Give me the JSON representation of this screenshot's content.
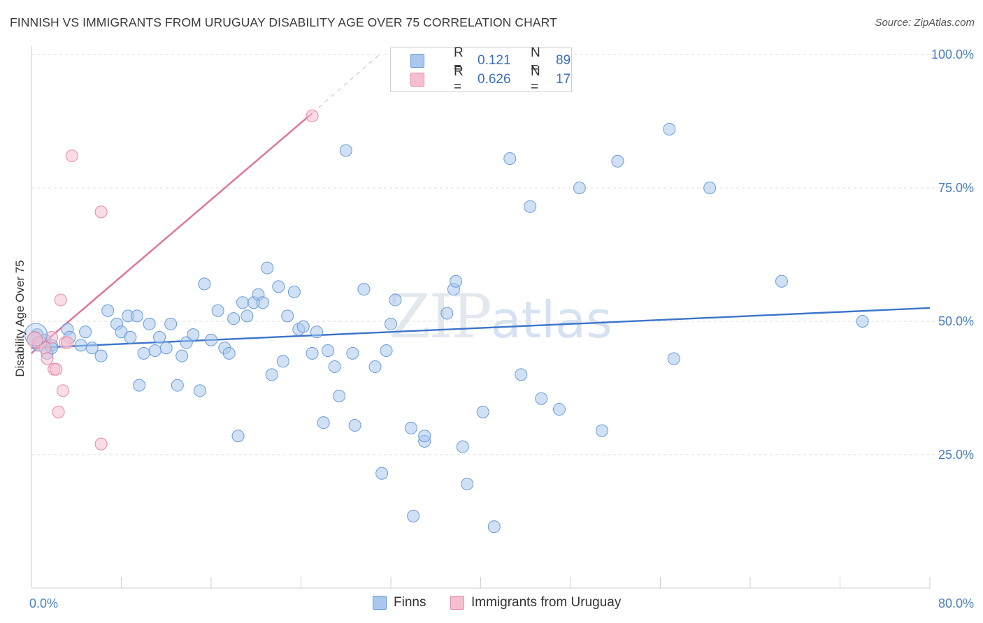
{
  "header": {
    "title": "FINNISH VS IMMIGRANTS FROM URUGUAY DISABILITY AGE OVER 75 CORRELATION CHART",
    "source": "Source: ZipAtlas.com"
  },
  "watermark": {
    "zip": "ZIP",
    "atlas": "atlas"
  },
  "legend": {
    "rows": [
      {
        "r_label": "R =",
        "r_value": "0.121",
        "n_label": "N =",
        "n_value": "89",
        "color": "#aac8ee",
        "border": "#6b9bd6"
      },
      {
        "r_label": "R =",
        "r_value": "0.626",
        "n_label": "N =",
        "n_value": "17",
        "color": "#f6bfd0",
        "border": "#e58aa8"
      }
    ]
  },
  "bottom_legend": [
    {
      "label": "Finns",
      "color": "#aac8ee",
      "border": "#6b9bd6"
    },
    {
      "label": "Immigrants from Uruguay",
      "color": "#f6bfd0",
      "border": "#e58aa8"
    }
  ],
  "chart_data": {
    "type": "scatter",
    "title": "FINNISH VS IMMIGRANTS FROM URUGUAY DISABILITY AGE OVER 75 CORRELATION CHART",
    "xlabel": "",
    "ylabel": "Disability Age Over 75",
    "xlim": [
      0,
      80
    ],
    "ylim": [
      0,
      100
    ],
    "x_tick_labels": [
      {
        "value": 0,
        "label": "0.0%"
      },
      {
        "value": 80,
        "label": "80.0%"
      }
    ],
    "y_tick_labels": [
      {
        "value": 100,
        "label": "100.0%"
      },
      {
        "value": 75,
        "label": "75.0%"
      },
      {
        "value": 50,
        "label": "50.0%"
      },
      {
        "value": 25,
        "label": "25.0%"
      }
    ],
    "series": [
      {
        "name": "Finns",
        "color": "#aac8ee",
        "stroke": "#6b9bd6",
        "trend": {
          "x": [
            0,
            80
          ],
          "y": [
            45.0,
            52.5
          ],
          "color": "#3b74c9"
        },
        "points": [
          [
            0.5,
            47.5
          ],
          [
            0.6,
            45.5
          ],
          [
            1.2,
            46.5
          ],
          [
            1.8,
            45.5
          ],
          [
            1.4,
            44.0
          ],
          [
            1.8,
            45.0
          ],
          [
            3.2,
            48.5
          ],
          [
            3.4,
            47.0
          ],
          [
            4.4,
            45.5
          ],
          [
            4.8,
            48.0
          ],
          [
            5.4,
            45.0
          ],
          [
            6.2,
            43.5
          ],
          [
            6.8,
            52.0
          ],
          [
            7.6,
            49.5
          ],
          [
            8.0,
            48.0
          ],
          [
            8.6,
            51.0
          ],
          [
            8.8,
            47.0
          ],
          [
            9.4,
            51.0
          ],
          [
            9.6,
            38.0
          ],
          [
            10.0,
            44.0
          ],
          [
            10.5,
            49.5
          ],
          [
            11.0,
            44.5
          ],
          [
            11.4,
            47.0
          ],
          [
            12.0,
            45.0
          ],
          [
            12.4,
            49.5
          ],
          [
            13.0,
            38.0
          ],
          [
            13.4,
            43.5
          ],
          [
            13.8,
            46.0
          ],
          [
            14.4,
            47.5
          ],
          [
            15.0,
            37.0
          ],
          [
            15.4,
            57.0
          ],
          [
            16.0,
            46.5
          ],
          [
            16.6,
            52.0
          ],
          [
            17.2,
            45.0
          ],
          [
            17.6,
            44.0
          ],
          [
            18.0,
            50.5
          ],
          [
            18.4,
            28.5
          ],
          [
            18.8,
            53.5
          ],
          [
            19.2,
            51.0
          ],
          [
            19.8,
            53.5
          ],
          [
            20.2,
            55.0
          ],
          [
            20.6,
            53.5
          ],
          [
            21.0,
            60.0
          ],
          [
            21.4,
            40.0
          ],
          [
            22.0,
            56.5
          ],
          [
            22.4,
            42.5
          ],
          [
            22.8,
            51.0
          ],
          [
            23.4,
            55.5
          ],
          [
            23.8,
            48.5
          ],
          [
            24.2,
            49.0
          ],
          [
            25.0,
            44.0
          ],
          [
            25.4,
            48.0
          ],
          [
            26.0,
            31.0
          ],
          [
            26.4,
            44.5
          ],
          [
            27.0,
            41.5
          ],
          [
            27.4,
            36.0
          ],
          [
            28.0,
            82.0
          ],
          [
            28.6,
            44.0
          ],
          [
            28.8,
            30.5
          ],
          [
            29.6,
            56.0
          ],
          [
            30.6,
            41.5
          ],
          [
            31.2,
            21.5
          ],
          [
            31.6,
            44.5
          ],
          [
            32.0,
            49.5
          ],
          [
            32.4,
            54.0
          ],
          [
            33.8,
            30.0
          ],
          [
            34.0,
            13.5
          ],
          [
            35.0,
            27.5
          ],
          [
            35.0,
            28.5
          ],
          [
            37.0,
            51.5
          ],
          [
            37.6,
            56.0
          ],
          [
            37.8,
            57.5
          ],
          [
            38.4,
            26.5
          ],
          [
            38.8,
            19.5
          ],
          [
            40.2,
            33.0
          ],
          [
            41.2,
            11.5
          ],
          [
            42.6,
            80.5
          ],
          [
            43.6,
            40.0
          ],
          [
            44.4,
            71.5
          ],
          [
            45.4,
            35.5
          ],
          [
            47.0,
            33.5
          ],
          [
            48.8,
            75.0
          ],
          [
            50.8,
            29.5
          ],
          [
            52.2,
            80.0
          ],
          [
            56.8,
            86.0
          ],
          [
            57.2,
            43.0
          ],
          [
            60.4,
            75.0
          ],
          [
            66.8,
            57.5
          ],
          [
            74.0,
            50.0
          ]
        ]
      },
      {
        "name": "Immigrants from Uruguay",
        "color": "#f6bfd0",
        "stroke": "#e58aa8",
        "trend": {
          "x": [
            0,
            25
          ],
          "y": [
            44.0,
            89.0
          ],
          "dash_to": [
            31,
            100
          ],
          "color": "#e0719a"
        },
        "points": [
          [
            0.3,
            47.0
          ],
          [
            0.6,
            46.0
          ],
          [
            0.8,
            46.0
          ],
          [
            1.2,
            45.0
          ],
          [
            1.4,
            43.0
          ],
          [
            1.8,
            47.0
          ],
          [
            2.0,
            41.0
          ],
          [
            2.2,
            41.0
          ],
          [
            2.4,
            33.0
          ],
          [
            2.6,
            54.0
          ],
          [
            2.8,
            37.0
          ],
          [
            3.0,
            46.0
          ],
          [
            3.2,
            46.0
          ],
          [
            3.6,
            81.0
          ],
          [
            6.2,
            70.5
          ],
          [
            6.2,
            27.0
          ],
          [
            25.0,
            88.5
          ]
        ]
      }
    ]
  }
}
